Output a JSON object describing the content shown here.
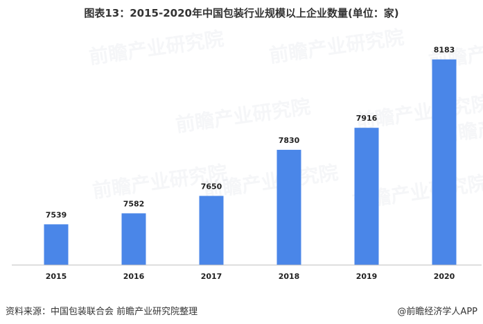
{
  "chart_data": {
    "type": "bar",
    "title": "图表13：2015-2020年中国包装行业规模以上企业数量(单位：家)",
    "categories": [
      "2015",
      "2016",
      "2017",
      "2018",
      "2019",
      "2020"
    ],
    "series": [
      {
        "values": [
          7539,
          7582,
          7650,
          7830,
          7916,
          8183
        ]
      }
    ],
    "ylim": [
      7380,
      8220
    ],
    "grid": false,
    "bar_color": "#4a86e8",
    "axis_color": "#bfbfbf"
  },
  "footer": {
    "source": "资料来源：中国包装联合会 前瞻产业研究院整理",
    "brand": "@前瞻经济学人APP"
  },
  "watermark": {
    "text": "前瞻产业研究院"
  }
}
